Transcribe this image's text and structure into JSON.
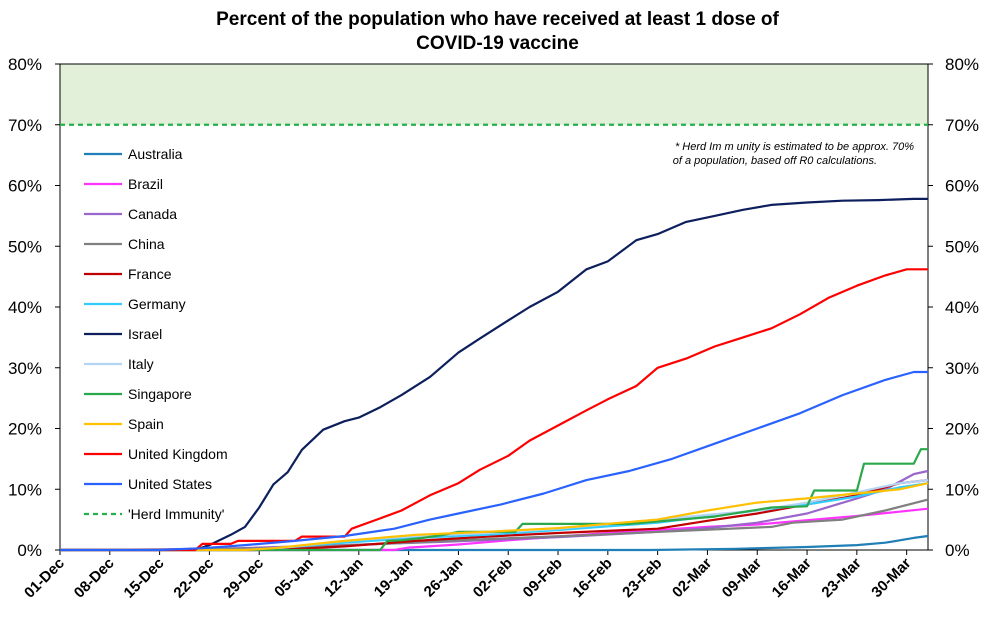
{
  "chart_data": {
    "type": "line",
    "title_line1": "Percent of the population who have received at least 1 dose of",
    "title_line2": "COVID-19 vaccine",
    "ylim": [
      0,
      80
    ],
    "y_ticks": [
      "0%",
      "10%",
      "20%",
      "30%",
      "40%",
      "50%",
      "60%",
      "70%",
      "80%"
    ],
    "x_ticks": [
      "01-Dec",
      "08-Dec",
      "15-Dec",
      "22-Dec",
      "29-Dec",
      "05-Jan",
      "12-Jan",
      "19-Jan",
      "26-Jan",
      "02-Feb",
      "09-Feb",
      "16-Feb",
      "23-Feb",
      "02-Mar",
      "09-Mar",
      "16-Mar",
      "23-Mar",
      "30-Mar"
    ],
    "x_range_days": [
      0,
      122
    ],
    "herd_immunity": {
      "name": "'Herd Immunity'",
      "value": 70,
      "color": "#22b14c",
      "fill": "#e2f0d9"
    },
    "annotation_line1": "* Herd Im m unity is estimated to be approx. 70%",
    "annotation_line2": "of a population, based off R0 calculations.",
    "legend_position": "top-left",
    "series": [
      {
        "name": "Australia",
        "color": "#1f7fb6",
        "points": [
          [
            0,
            0
          ],
          [
            83,
            0
          ],
          [
            95,
            0.2
          ],
          [
            105,
            0.5
          ],
          [
            112,
            0.8
          ],
          [
            116,
            1.2
          ],
          [
            120,
            2.0
          ],
          [
            122,
            2.3
          ]
        ]
      },
      {
        "name": "Brazil",
        "color": "#ff33ff",
        "points": [
          [
            0,
            0
          ],
          [
            47,
            0
          ],
          [
            49,
            0.4
          ],
          [
            56,
            0.9
          ],
          [
            63,
            1.6
          ],
          [
            70,
            2.2
          ],
          [
            77,
            2.8
          ],
          [
            84,
            3.3
          ],
          [
            91,
            3.8
          ],
          [
            98,
            4.2
          ],
          [
            105,
            4.9
          ],
          [
            112,
            5.6
          ],
          [
            118,
            6.3
          ],
          [
            122,
            6.8
          ]
        ]
      },
      {
        "name": "Canada",
        "color": "#9966cc",
        "points": [
          [
            0,
            0
          ],
          [
            14,
            0.1
          ],
          [
            25,
            0.3
          ],
          [
            40,
            0.8
          ],
          [
            55,
            1.4
          ],
          [
            70,
            2.1
          ],
          [
            84,
            3.0
          ],
          [
            91,
            3.6
          ],
          [
            98,
            4.5
          ],
          [
            105,
            6.0
          ],
          [
            112,
            8.5
          ],
          [
            116,
            10.0
          ],
          [
            120,
            12.5
          ],
          [
            122,
            13.0
          ]
        ]
      },
      {
        "name": "China",
        "color": "#808080",
        "points": [
          [
            0,
            0
          ],
          [
            14,
            0.05
          ],
          [
            30,
            0.3
          ],
          [
            45,
            1.0
          ],
          [
            60,
            1.8
          ],
          [
            75,
            2.5
          ],
          [
            90,
            3.3
          ],
          [
            100,
            3.8
          ],
          [
            103,
            4.5
          ],
          [
            110,
            5.0
          ],
          [
            116,
            6.5
          ],
          [
            122,
            8.3
          ]
        ]
      },
      {
        "name": "France",
        "color": "#c00000",
        "points": [
          [
            0,
            0
          ],
          [
            27,
            0
          ],
          [
            32,
            0.1
          ],
          [
            40,
            0.6
          ],
          [
            50,
            1.5
          ],
          [
            60,
            2.2
          ],
          [
            70,
            2.8
          ],
          [
            84,
            3.5
          ],
          [
            91,
            4.8
          ],
          [
            98,
            6.0
          ],
          [
            105,
            7.5
          ],
          [
            112,
            9.0
          ],
          [
            118,
            11.0
          ],
          [
            122,
            11.5
          ]
        ]
      },
      {
        "name": "Germany",
        "color": "#33ccff",
        "points": [
          [
            0,
            0
          ],
          [
            26,
            0
          ],
          [
            30,
            0.3
          ],
          [
            40,
            1.2
          ],
          [
            50,
            2.0
          ],
          [
            60,
            2.5
          ],
          [
            70,
            3.3
          ],
          [
            84,
            4.5
          ],
          [
            91,
            5.5
          ],
          [
            98,
            6.5
          ],
          [
            105,
            7.5
          ],
          [
            112,
            8.8
          ],
          [
            118,
            10.3
          ],
          [
            122,
            11.0
          ]
        ]
      },
      {
        "name": "Israel",
        "color": "#0d1f5c",
        "points": [
          [
            0,
            0
          ],
          [
            19,
            0
          ],
          [
            21,
            0.8
          ],
          [
            24,
            2.5
          ],
          [
            26,
            3.8
          ],
          [
            28,
            7.0
          ],
          [
            30,
            10.8
          ],
          [
            32,
            12.8
          ],
          [
            34,
            16.5
          ],
          [
            37,
            19.8
          ],
          [
            40,
            21.2
          ],
          [
            42,
            21.8
          ],
          [
            45,
            23.5
          ],
          [
            48,
            25.5
          ],
          [
            52,
            28.5
          ],
          [
            56,
            32.5
          ],
          [
            59,
            34.8
          ],
          [
            63,
            37.8
          ],
          [
            66,
            40.0
          ],
          [
            70,
            42.5
          ],
          [
            74,
            46.2
          ],
          [
            77,
            47.5
          ],
          [
            81,
            51.0
          ],
          [
            84,
            52.0
          ],
          [
            88,
            54.0
          ],
          [
            92,
            55.0
          ],
          [
            96,
            56.0
          ],
          [
            100,
            56.8
          ],
          [
            105,
            57.2
          ],
          [
            110,
            57.5
          ],
          [
            115,
            57.6
          ],
          [
            120,
            57.8
          ],
          [
            122,
            57.8
          ]
        ]
      },
      {
        "name": "Italy",
        "color": "#b4d4f4",
        "points": [
          [
            0,
            0
          ],
          [
            26,
            0
          ],
          [
            30,
            0.2
          ],
          [
            40,
            1.5
          ],
          [
            50,
            2.3
          ],
          [
            60,
            2.8
          ],
          [
            70,
            3.5
          ],
          [
            84,
            5.0
          ],
          [
            91,
            5.8
          ],
          [
            98,
            6.5
          ],
          [
            105,
            7.8
          ],
          [
            112,
            9.5
          ],
          [
            118,
            11.0
          ],
          [
            122,
            11.5
          ]
        ]
      },
      {
        "name": "Singapore",
        "color": "#2aa84a",
        "points": [
          [
            0,
            0
          ],
          [
            45,
            0
          ],
          [
            46,
            1.5
          ],
          [
            48,
            1.6
          ],
          [
            51,
            2.0
          ],
          [
            54,
            2.5
          ],
          [
            56,
            3.0
          ],
          [
            64,
            3.0
          ],
          [
            65,
            4.3
          ],
          [
            80,
            4.3
          ],
          [
            92,
            5.5
          ],
          [
            100,
            7.0
          ],
          [
            105,
            7.2
          ],
          [
            106,
            9.8
          ],
          [
            112,
            9.8
          ],
          [
            113,
            14.2
          ],
          [
            120,
            14.2
          ],
          [
            121,
            16.6
          ],
          [
            122,
            16.6
          ]
        ]
      },
      {
        "name": "Spain",
        "color": "#ffc000",
        "points": [
          [
            0,
            0
          ],
          [
            26,
            0
          ],
          [
            30,
            0.3
          ],
          [
            40,
            1.5
          ],
          [
            50,
            2.5
          ],
          [
            60,
            3.0
          ],
          [
            70,
            3.6
          ],
          [
            84,
            5.0
          ],
          [
            91,
            6.5
          ],
          [
            98,
            7.8
          ],
          [
            105,
            8.5
          ],
          [
            112,
            9.3
          ],
          [
            118,
            10.0
          ],
          [
            122,
            11.0
          ]
        ]
      },
      {
        "name": "United Kingdom",
        "color": "#ff0000",
        "points": [
          [
            0,
            0
          ],
          [
            19,
            0
          ],
          [
            20,
            1.0
          ],
          [
            24,
            1.0
          ],
          [
            25,
            1.5
          ],
          [
            33,
            1.5
          ],
          [
            34,
            2.2
          ],
          [
            40,
            2.2
          ],
          [
            41,
            3.5
          ],
          [
            45,
            5.2
          ],
          [
            48,
            6.5
          ],
          [
            52,
            9.0
          ],
          [
            56,
            11.0
          ],
          [
            59,
            13.2
          ],
          [
            63,
            15.5
          ],
          [
            66,
            18.0
          ],
          [
            70,
            20.5
          ],
          [
            74,
            23.0
          ],
          [
            77,
            24.8
          ],
          [
            81,
            27.0
          ],
          [
            84,
            30.0
          ],
          [
            88,
            31.5
          ],
          [
            92,
            33.5
          ],
          [
            96,
            35.0
          ],
          [
            100,
            36.5
          ],
          [
            104,
            38.8
          ],
          [
            108,
            41.5
          ],
          [
            112,
            43.5
          ],
          [
            116,
            45.2
          ],
          [
            119,
            46.2
          ],
          [
            122,
            46.2
          ]
        ]
      },
      {
        "name": "United States",
        "color": "#2962ff",
        "points": [
          [
            0,
            0
          ],
          [
            14,
            0
          ],
          [
            20,
            0.3
          ],
          [
            26,
            0.8
          ],
          [
            33,
            1.5
          ],
          [
            40,
            2.3
          ],
          [
            47,
            3.5
          ],
          [
            52,
            5.0
          ],
          [
            56,
            6.0
          ],
          [
            62,
            7.5
          ],
          [
            68,
            9.3
          ],
          [
            74,
            11.5
          ],
          [
            80,
            13.0
          ],
          [
            86,
            15.0
          ],
          [
            92,
            17.5
          ],
          [
            98,
            20.0
          ],
          [
            104,
            22.5
          ],
          [
            110,
            25.5
          ],
          [
            116,
            28.0
          ],
          [
            120,
            29.3
          ],
          [
            122,
            29.3
          ]
        ]
      }
    ]
  }
}
